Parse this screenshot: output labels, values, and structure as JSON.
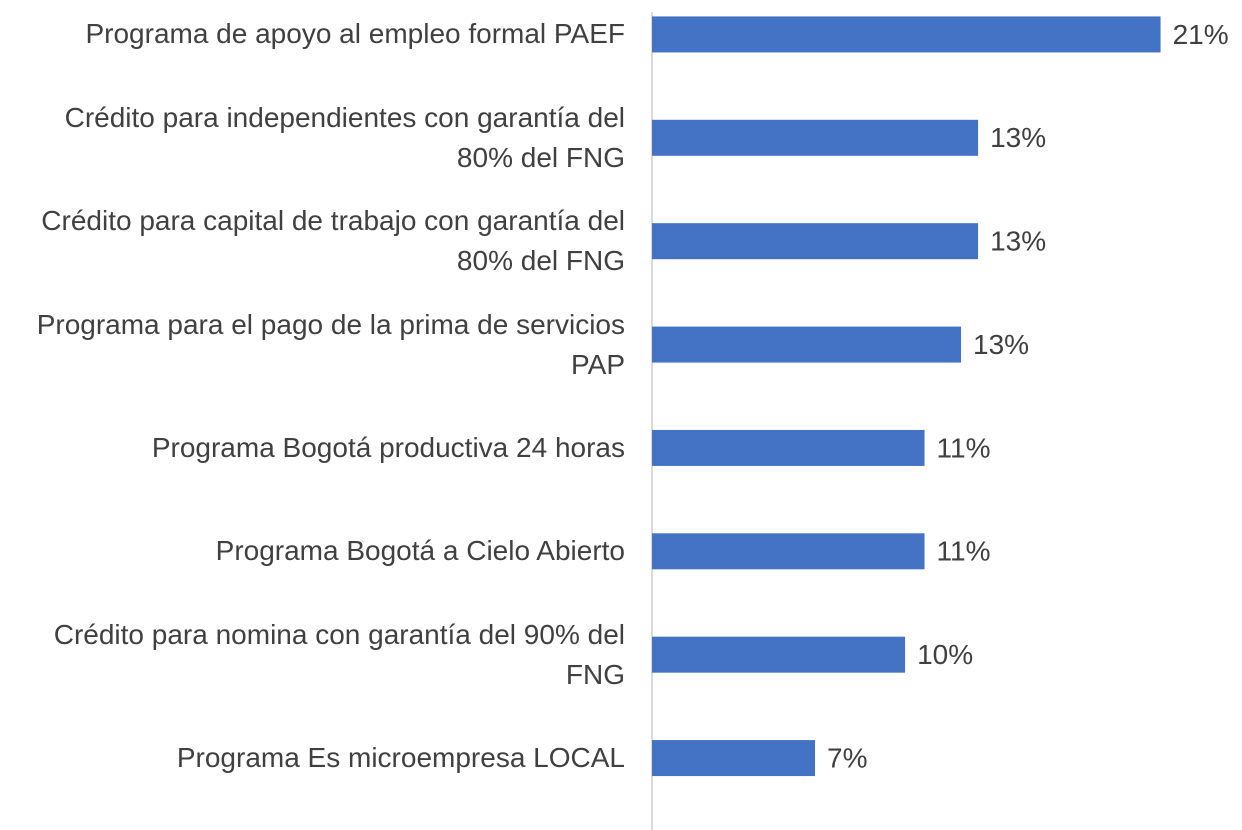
{
  "chart_data": {
    "type": "barh",
    "categories": [
      "Programa de apoyo al empleo formal PAEF",
      "Crédito para independientes con garantía del 80% del FNG",
      "Crédito para capital de trabajo con garantía del 80% del FNG",
      "Programa para el pago de la prima de servicios PAP",
      "Programa Bogotá productiva 24 horas",
      "Programa Bogotá a Cielo Abierto",
      "Crédito para nomina con garantía del 90% del FNG",
      "Programa Es microempresa LOCAL"
    ],
    "values": [
      20.9,
      13.4,
      13.4,
      12.7,
      11.2,
      11.2,
      10.4,
      6.7
    ],
    "value_labels": [
      "21%",
      "13%",
      "13%",
      "13%",
      "11%",
      "11%",
      "10%",
      "7%"
    ],
    "color": "#4472c4",
    "xlim": [
      0,
      24
    ]
  }
}
